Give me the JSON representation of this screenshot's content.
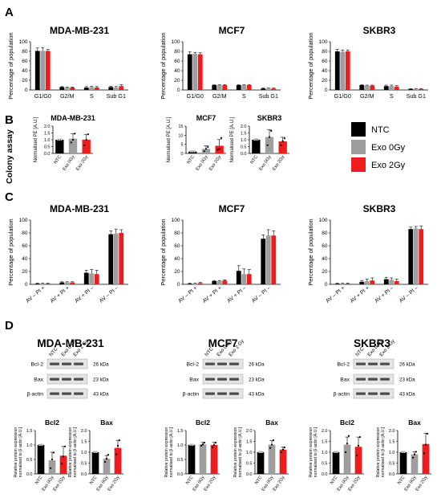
{
  "colors": {
    "NTC": "#000000",
    "Exo 0Gy": "#9e9e9e",
    "Exo 2Gy": "#ee1c1c"
  },
  "legend": [
    "NTC",
    "Exo 0Gy",
    "Exo 2Gy"
  ],
  "panel_letters": [
    "A",
    "B",
    "C",
    "D"
  ],
  "cell_lines": [
    "MDA-MB-231",
    "MCF7",
    "SKBR3"
  ],
  "colony_assay_label": "Colony assay",
  "western": {
    "lane_labels": [
      "NTC",
      "Exo 0 Gy",
      "Exo 2 Gy"
    ],
    "rows": [
      {
        "protein": "Bcl-2",
        "size": "26 kDa"
      },
      {
        "protein": "Bax",
        "size": "23 kDa"
      },
      {
        "protein": "β-actin",
        "size": "43 kDa"
      }
    ]
  },
  "chart_data": [
    {
      "id": "A1",
      "type": "bar",
      "title": "MDA-MB-231",
      "ylabel": "Percentage of population",
      "categories": [
        "G1/G0",
        "G2/M",
        "S",
        "Sub G1"
      ],
      "ylim": [
        0,
        100
      ],
      "yticks": [
        0,
        20,
        40,
        60,
        80,
        100
      ],
      "series": [
        {
          "name": "NTC",
          "values": [
            81,
            6,
            5,
            6
          ],
          "errors": [
            6,
            1,
            2,
            2
          ]
        },
        {
          "name": "Exo 0Gy",
          "values": [
            81,
            5,
            6,
            5
          ],
          "errors": [
            7,
            1,
            2,
            2
          ]
        },
        {
          "name": "Exo 2Gy",
          "values": [
            81,
            5,
            5,
            8
          ],
          "errors": [
            3,
            1,
            2,
            3
          ]
        }
      ]
    },
    {
      "id": "A2",
      "type": "bar",
      "title": "MCF7",
      "ylabel": "Percentage of population",
      "categories": [
        "G1/G0",
        "G2/M",
        "S",
        "Sub G1"
      ],
      "ylim": [
        0,
        100
      ],
      "yticks": [
        0,
        20,
        40,
        60,
        80,
        100
      ],
      "series": [
        {
          "name": "NTC",
          "values": [
            74,
            10,
            10,
            3
          ],
          "errors": [
            5,
            1,
            1,
            1
          ]
        },
        {
          "name": "Exo 0Gy",
          "values": [
            75,
            10,
            10,
            3
          ],
          "errors": [
            3,
            1,
            1,
            1
          ]
        },
        {
          "name": "Exo 2Gy",
          "values": [
            74,
            10,
            10,
            3
          ],
          "errors": [
            3,
            1,
            1,
            1
          ]
        }
      ]
    },
    {
      "id": "A3",
      "type": "bar",
      "title": "SKBR3",
      "ylabel": "Percentage of population",
      "categories": [
        "G1/G0",
        "G2/M",
        "S",
        "Sub G1"
      ],
      "ylim": [
        0,
        100
      ],
      "yticks": [
        0,
        20,
        40,
        60,
        80,
        100
      ],
      "series": [
        {
          "name": "NTC",
          "values": [
            80,
            10,
            8,
            2
          ],
          "errors": [
            4,
            1,
            2,
            1
          ]
        },
        {
          "name": "Exo 0Gy",
          "values": [
            79,
            9,
            8,
            2
          ],
          "errors": [
            4,
            1,
            2,
            1
          ]
        },
        {
          "name": "Exo 2Gy",
          "values": [
            80,
            9,
            7,
            2
          ],
          "errors": [
            3,
            1,
            2,
            1
          ]
        }
      ]
    },
    {
      "id": "B1",
      "type": "bar",
      "title": "MDA-MB-231",
      "ylabel": "Normalised PE [A.U.]",
      "categories": [
        "NTC",
        "Exo 0Gy",
        "Exo 2Gy"
      ],
      "ylim": [
        0,
        2
      ],
      "yticks": [
        0.0,
        0.5,
        1.0,
        1.5,
        2.0
      ],
      "values": [
        1.0,
        1.08,
        1.0
      ],
      "errors": [
        0.02,
        0.35,
        0.4
      ],
      "points": [
        [
          1.0,
          1.0,
          1.0
        ],
        [
          0.8,
          1.0,
          1.45
        ],
        [
          0.6,
          1.0,
          1.4
        ]
      ]
    },
    {
      "id": "B2",
      "type": "bar",
      "title": "MCF7",
      "ylabel": "Normalised PE [A.U.]",
      "categories": [
        "NTC",
        "Exo 0Gy",
        "Exo 2Gy"
      ],
      "ylim": [
        0,
        15
      ],
      "yticks": [
        0,
        5,
        10,
        15
      ],
      "values": [
        1.0,
        2.5,
        4.2
      ],
      "errors": [
        0.2,
        1.6,
        3.4
      ],
      "points": [
        [
          1.0,
          1.0,
          1.0
        ],
        [
          1.2,
          2.5,
          3.6
        ],
        [
          2.0,
          2.5,
          8.5
        ]
      ]
    },
    {
      "id": "B3",
      "type": "bar",
      "title": "SKBR3",
      "ylabel": "Normalised PE [A.U.]",
      "categories": [
        "NTC",
        "Exo 0Gy",
        "Exo 2Gy"
      ],
      "ylim": [
        0,
        2
      ],
      "yticks": [
        0.0,
        0.5,
        1.0,
        1.5,
        2.0
      ],
      "values": [
        1.0,
        1.2,
        0.88
      ],
      "errors": [
        0.05,
        0.55,
        0.3
      ],
      "points": [
        [
          1.0,
          1.0,
          1.0
        ],
        [
          0.6,
          1.2,
          1.65
        ],
        [
          0.6,
          0.9,
          1.1
        ]
      ]
    },
    {
      "id": "C1",
      "type": "bar",
      "title": "MDA-MB-231",
      "ylabel": "Percentage of population",
      "categories": [
        "AV – PI +",
        "AV + PI +",
        "AV + PI –",
        "AV – PI –"
      ],
      "ylim": [
        0,
        100
      ],
      "yticks": [
        0,
        20,
        40,
        60,
        80,
        100
      ],
      "series": [
        {
          "name": "NTC",
          "values": [
            1,
            3,
            18,
            78
          ],
          "errors": [
            1,
            1,
            4,
            5
          ]
        },
        {
          "name": "Exo 0Gy",
          "values": [
            1,
            3,
            17,
            79
          ],
          "errors": [
            1,
            1,
            6,
            7
          ]
        },
        {
          "name": "Exo 2Gy",
          "values": [
            1,
            3,
            16,
            80
          ],
          "errors": [
            1,
            1,
            6,
            5
          ]
        }
      ]
    },
    {
      "id": "C2",
      "type": "bar",
      "title": "MCF7",
      "ylabel": "Percentage of population",
      "categories": [
        "AV – PI +",
        "AV + PI +",
        "AV + PI –",
        "AV – PI –"
      ],
      "ylim": [
        0,
        100
      ],
      "yticks": [
        0,
        20,
        40,
        60,
        80,
        100
      ],
      "series": [
        {
          "name": "NTC",
          "values": [
            1,
            5,
            21,
            71
          ],
          "errors": [
            1,
            1,
            8,
            6
          ]
        },
        {
          "name": "Exo 0Gy",
          "values": [
            1,
            5,
            16,
            76
          ],
          "errors": [
            1,
            1,
            8,
            9
          ]
        },
        {
          "name": "Exo 2Gy",
          "values": [
            2,
            6,
            16,
            76
          ],
          "errors": [
            1,
            1,
            7,
            7
          ]
        }
      ]
    },
    {
      "id": "C3",
      "type": "bar",
      "title": "SKBR3",
      "ylabel": "Percentage of population",
      "categories": [
        "AV – PI +",
        "AV + PI +",
        "AV + PI –",
        "AV – PI –"
      ],
      "ylim": [
        0,
        100
      ],
      "yticks": [
        0,
        20,
        40,
        60,
        80,
        100
      ],
      "series": [
        {
          "name": "NTC",
          "values": [
            1,
            4,
            8,
            86
          ],
          "errors": [
            1,
            2,
            3,
            3
          ]
        },
        {
          "name": "Exo 0Gy",
          "values": [
            1,
            5,
            7,
            87
          ],
          "errors": [
            1,
            3,
            3,
            3
          ]
        },
        {
          "name": "Exo 2Gy",
          "values": [
            1,
            6,
            5,
            86
          ],
          "errors": [
            1,
            4,
            3,
            5
          ]
        }
      ]
    },
    {
      "id": "D1",
      "type": "bar",
      "title": "Bcl2",
      "ylabel": "Relative protein expression normalised to β-actin [A.U.]",
      "categories": [
        "NTC",
        "Exo 0Gy",
        "Exo 2Gy"
      ],
      "ylim": [
        0,
        1.5
      ],
      "yticks": [
        0.0,
        0.5,
        1.0,
        1.5
      ],
      "values": [
        1.0,
        0.47,
        0.63
      ],
      "errors": [
        0.01,
        0.28,
        0.32
      ],
      "points": [
        [
          1.0,
          1.0,
          1.0
        ],
        [
          0.2,
          0.5,
          0.74
        ],
        [
          0.35,
          0.6,
          0.95
        ]
      ]
    },
    {
      "id": "D2",
      "type": "bar",
      "title": "Bax",
      "ylabel": "Relative protein expression normalised to β-actin [A.U.]",
      "categories": [
        "NTC",
        "Exo 0Gy",
        "Exo 2Gy"
      ],
      "ylim": [
        0,
        2.0
      ],
      "yticks": [
        0.0,
        0.5,
        1.0,
        1.5,
        2.0
      ],
      "values": [
        1.0,
        0.7,
        1.2
      ],
      "errors": [
        0.02,
        0.15,
        0.35
      ],
      "points": [
        [
          1.0,
          1.0,
          1.0
        ],
        [
          0.55,
          0.7,
          0.88
        ],
        [
          0.9,
          1.3,
          1.55
        ]
      ]
    },
    {
      "id": "D3",
      "type": "bar",
      "title": "Bcl2",
      "ylabel": "Relative protein expression normalised to β-actin [A.U.]",
      "categories": [
        "NTC",
        "Exo 0Gy",
        "Exo 2Gy"
      ],
      "ylim": [
        0,
        1.5
      ],
      "yticks": [
        0.0,
        0.5,
        1.0,
        1.5
      ],
      "values": [
        1.0,
        1.02,
        1.0
      ],
      "errors": [
        0.02,
        0.07,
        0.09
      ],
      "points": [
        [
          1.0,
          1.0,
          1.0
        ],
        [
          0.98,
          1.02,
          1.08
        ],
        [
          0.92,
          1.0,
          1.08
        ]
      ]
    },
    {
      "id": "D4",
      "type": "bar",
      "title": "Bax",
      "ylabel": "Relative protein expression normalised to β-actin [A.U.]",
      "categories": [
        "NTC",
        "Exo 0Gy",
        "Exo 2Gy"
      ],
      "ylim": [
        0,
        2.0
      ],
      "yticks": [
        0.0,
        0.5,
        1.0,
        1.5,
        2.0
      ],
      "values": [
        1.0,
        1.35,
        1.12
      ],
      "errors": [
        0.01,
        0.18,
        0.12
      ],
      "points": [
        [
          1.0,
          1.0,
          1.0
        ],
        [
          1.2,
          1.35,
          1.55
        ],
        [
          1.0,
          1.12,
          1.22
        ]
      ]
    },
    {
      "id": "D5",
      "type": "bar",
      "title": "Bcl2",
      "ylabel": "Relative protein expression normalised to β-actin [A.U.]",
      "categories": [
        "NTC",
        "Exo 0Gy",
        "Exo 2Gy"
      ],
      "ylim": [
        0,
        2.0
      ],
      "yticks": [
        0.0,
        0.5,
        1.0,
        1.5,
        2.0
      ],
      "values": [
        1.0,
        1.35,
        1.25
      ],
      "errors": [
        0.02,
        0.35,
        0.45
      ],
      "points": [
        [
          1.0,
          1.0,
          1.0
        ],
        [
          1.0,
          1.4,
          1.75
        ],
        [
          0.85,
          1.3,
          1.7
        ]
      ]
    },
    {
      "id": "D6",
      "type": "bar",
      "title": "Bax",
      "ylabel": "Relative protein expression normalised to β-actin [A.U.]",
      "categories": [
        "NTC",
        "Exo 0Gy",
        "Exo 2Gy"
      ],
      "ylim": [
        0,
        2.0
      ],
      "yticks": [
        0.0,
        0.5,
        1.0,
        1.5,
        2.0
      ],
      "values": [
        1.0,
        0.9,
        1.38
      ],
      "errors": [
        0.02,
        0.12,
        0.5
      ],
      "points": [
        [
          1.0,
          1.0,
          1.0
        ],
        [
          0.75,
          0.9,
          1.02
        ],
        [
          0.95,
          1.35,
          1.85
        ]
      ]
    }
  ]
}
